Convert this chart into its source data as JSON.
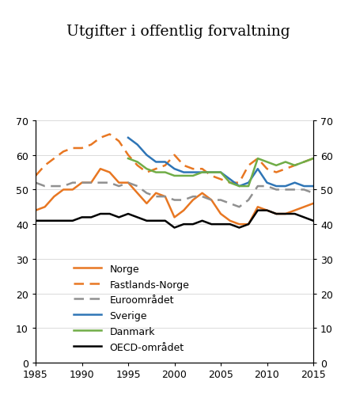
{
  "title": "Utgifter i offentlig forvaltning",
  "years": [
    1985,
    1986,
    1987,
    1988,
    1989,
    1990,
    1991,
    1992,
    1993,
    1994,
    1995,
    1996,
    1997,
    1998,
    1999,
    2000,
    2001,
    2002,
    2003,
    2004,
    2005,
    2006,
    2007,
    2008,
    2009,
    2010,
    2011,
    2012,
    2013,
    2014,
    2015
  ],
  "norge": [
    44,
    45,
    48,
    50,
    50,
    52,
    52,
    56,
    55,
    52,
    52,
    49,
    46,
    49,
    48,
    42,
    44,
    47,
    49,
    47,
    43,
    41,
    40,
    40,
    45,
    44,
    43,
    43,
    44,
    45,
    46
  ],
  "fastlands_norge": [
    54,
    57,
    59,
    61,
    62,
    62,
    63,
    65,
    66,
    64,
    60,
    57,
    55,
    56,
    57,
    60,
    57,
    56,
    56,
    54,
    53,
    52,
    52,
    57,
    59,
    56,
    55,
    56,
    57,
    58,
    59
  ],
  "euroomradet": [
    52,
    51,
    51,
    51,
    52,
    52,
    52,
    52,
    52,
    51,
    52,
    51,
    49,
    48,
    48,
    47,
    47,
    48,
    48,
    47,
    47,
    46,
    45,
    47,
    51,
    51,
    50,
    50,
    50,
    50,
    49
  ],
  "sverige": [
    null,
    null,
    null,
    null,
    null,
    null,
    null,
    null,
    null,
    null,
    65,
    63,
    60,
    58,
    58,
    56,
    55,
    55,
    55,
    55,
    55,
    53,
    51,
    52,
    56,
    52,
    51,
    51,
    52,
    51,
    51
  ],
  "danmark": [
    null,
    null,
    null,
    null,
    null,
    null,
    null,
    null,
    null,
    null,
    59,
    58,
    56,
    55,
    55,
    54,
    54,
    54,
    55,
    55,
    55,
    52,
    51,
    51,
    59,
    58,
    57,
    58,
    57,
    58,
    59
  ],
  "oecd": [
    41,
    41,
    41,
    41,
    41,
    42,
    42,
    43,
    43,
    42,
    43,
    42,
    41,
    41,
    41,
    39,
    40,
    40,
    41,
    40,
    40,
    40,
    39,
    40,
    44,
    44,
    43,
    43,
    43,
    42,
    41
  ],
  "norge_color": "#E87722",
  "fastlands_color": "#E87722",
  "euro_color": "#909090",
  "sverige_color": "#2E75B6",
  "danmark_color": "#70AD47",
  "oecd_color": "#000000",
  "ylim": [
    0,
    70
  ],
  "yticks": [
    0,
    10,
    20,
    30,
    40,
    50,
    60,
    70
  ],
  "xlim": [
    1985,
    2015
  ],
  "xticks": [
    1985,
    1990,
    1995,
    2000,
    2005,
    2010,
    2015
  ]
}
